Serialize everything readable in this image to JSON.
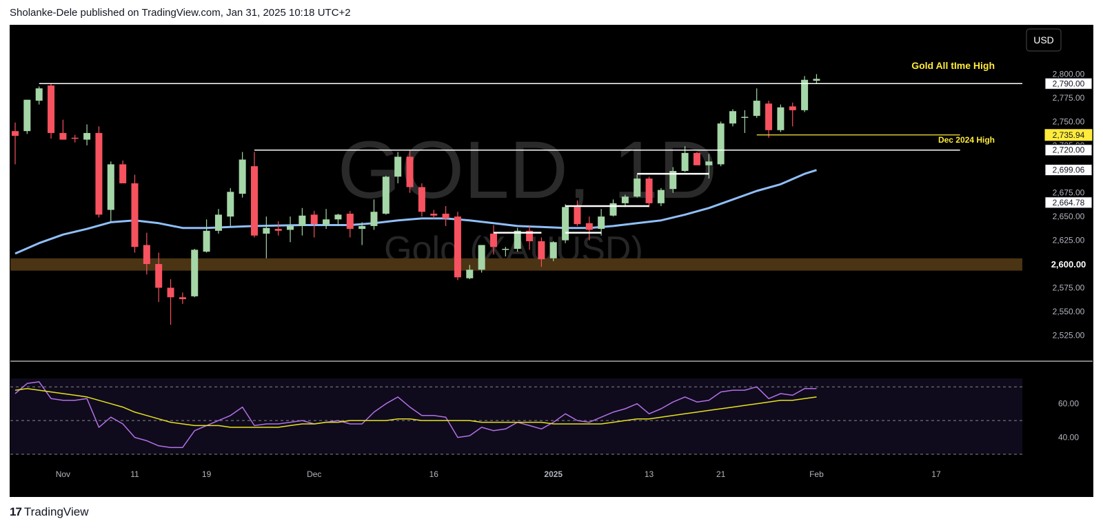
{
  "header": {
    "publish_line": "Sholanke-Dele published on TradingView.com, Jan 31, 2025 10:18 UTC+2"
  },
  "watermark": {
    "symbol": "GOLD, 1D",
    "description": "Gold (XAUUSD)"
  },
  "currency_button": "USD",
  "branding": {
    "logo_glyph": "17",
    "name": "TradingView"
  },
  "annotations": {
    "ath_label": "Gold All tIme High",
    "dec_high_label": "Dec 2024 High"
  },
  "colors": {
    "background": "#000000",
    "up_candle": "#a5d6a7",
    "down_candle": "#f7525f",
    "ma_line": "#90bff9",
    "rsi_line": "#b371e8",
    "rsi_ma": "#e8e21f",
    "support_zone": "#4a3414",
    "annotation_text": "#ffeb3b"
  },
  "chart_data": [
    {
      "type": "candlestick",
      "instrument": "Gold (XAUUSD)",
      "timeframe": "1D",
      "ylim": [
        2510,
        2812
      ],
      "y_ticks": [
        2525,
        2550,
        2575,
        2600,
        2625,
        2650,
        2675,
        2700,
        2725,
        2750,
        2775,
        2800
      ],
      "price_labels": [
        {
          "value": 2790.0,
          "text": "2,790.00",
          "style": "white"
        },
        {
          "value": 2735.94,
          "text": "2,735.94",
          "style": "yellow"
        },
        {
          "value": 2720.0,
          "text": "2,720.00",
          "style": "white"
        },
        {
          "value": 2699.06,
          "text": "2,699.06",
          "style": "white"
        },
        {
          "value": 2664.78,
          "text": "2,664.78",
          "style": "white"
        },
        {
          "value": 2600.0,
          "text": "2,600.00",
          "style": "bold"
        }
      ],
      "x_ticks": [
        {
          "label": "Nov",
          "index": 4
        },
        {
          "label": "11",
          "index": 10
        },
        {
          "label": "19",
          "index": 16
        },
        {
          "label": "Dec",
          "index": 25
        },
        {
          "label": "16",
          "index": 35
        },
        {
          "label": "2025",
          "index": 45,
          "bold": true
        },
        {
          "label": "13",
          "index": 53
        },
        {
          "label": "21",
          "index": 59
        },
        {
          "label": "Feb",
          "index": 67
        },
        {
          "label": "17",
          "index": 77
        }
      ],
      "candles": [
        [
          2740,
          2749,
          2705,
          2735
        ],
        [
          2740,
          2773,
          2737,
          2773
        ],
        [
          2772,
          2787,
          2768,
          2785
        ],
        [
          2788,
          2790,
          2732,
          2738
        ],
        [
          2738,
          2752,
          2731,
          2731
        ],
        [
          2733,
          2736,
          2728,
          2732
        ],
        [
          2731,
          2747,
          2725,
          2738
        ],
        [
          2738,
          2745,
          2649,
          2652
        ],
        [
          2657,
          2708,
          2645,
          2705
        ],
        [
          2705,
          2709,
          2686,
          2685
        ],
        [
          2685,
          2694,
          2612,
          2618
        ],
        [
          2620,
          2633,
          2589,
          2600
        ],
        [
          2600,
          2612,
          2560,
          2575
        ],
        [
          2575,
          2584,
          2536,
          2565
        ],
        [
          2565,
          2570,
          2558,
          2563
        ],
        [
          2566,
          2616,
          2565,
          2615
        ],
        [
          2613,
          2647,
          2612,
          2635
        ],
        [
          2635,
          2658,
          2632,
          2652
        ],
        [
          2650,
          2680,
          2640,
          2676
        ],
        [
          2674,
          2718,
          2670,
          2710
        ],
        [
          2703,
          2718,
          2628,
          2630
        ],
        [
          2632,
          2650,
          2606,
          2638
        ],
        [
          2637,
          2645,
          2630,
          2635
        ],
        [
          2636,
          2650,
          2623,
          2640
        ],
        [
          2640,
          2659,
          2630,
          2651
        ],
        [
          2652,
          2656,
          2628,
          2642
        ],
        [
          2641,
          2658,
          2637,
          2647
        ],
        [
          2647,
          2653,
          2640,
          2652
        ],
        [
          2653,
          2656,
          2628,
          2637
        ],
        [
          2637,
          2644,
          2620,
          2640
        ],
        [
          2640,
          2668,
          2636,
          2655
        ],
        [
          2653,
          2693,
          2652,
          2692
        ],
        [
          2692,
          2718,
          2685,
          2713
        ],
        [
          2713,
          2720,
          2675,
          2681
        ],
        [
          2681,
          2685,
          2650,
          2655
        ],
        [
          2653,
          2657,
          2648,
          2651
        ],
        [
          2653,
          2661,
          2640,
          2648
        ],
        [
          2650,
          2655,
          2583,
          2586
        ],
        [
          2585,
          2599,
          2584,
          2594
        ],
        [
          2594,
          2620,
          2591,
          2620
        ],
        [
          2632,
          2641,
          2610,
          2618
        ],
        [
          2615,
          2618,
          2608,
          2616
        ],
        [
          2616,
          2638,
          2613,
          2635
        ],
        [
          2635,
          2640,
          2615,
          2624
        ],
        [
          2624,
          2628,
          2597,
          2605
        ],
        [
          2606,
          2624,
          2603,
          2623
        ],
        [
          2625,
          2663,
          2622,
          2660
        ],
        [
          2660,
          2667,
          2640,
          2642
        ],
        [
          2643,
          2650,
          2625,
          2636
        ],
        [
          2637,
          2658,
          2630,
          2650
        ],
        [
          2651,
          2668,
          2650,
          2664
        ],
        [
          2664,
          2673,
          2660,
          2671
        ],
        [
          2671,
          2694,
          2670,
          2690
        ],
        [
          2690,
          2692,
          2660,
          2664
        ],
        [
          2664,
          2680,
          2661,
          2678
        ],
        [
          2679,
          2702,
          2675,
          2698
        ],
        [
          2698,
          2724,
          2697,
          2717
        ],
        [
          2717,
          2718,
          2705,
          2704
        ],
        [
          2704,
          2716,
          2690,
          2708
        ],
        [
          2705,
          2750,
          2703,
          2748
        ],
        [
          2748,
          2763,
          2745,
          2761
        ],
        [
          2755,
          2762,
          2738,
          2755
        ],
        [
          2756,
          2785,
          2754,
          2772
        ],
        [
          2769,
          2772,
          2733,
          2741
        ],
        [
          2741,
          2768,
          2739,
          2765
        ],
        [
          2766,
          2770,
          2745,
          2762
        ],
        [
          2762,
          2798,
          2760,
          2794
        ],
        [
          2793,
          2800,
          2790,
          2795
        ]
      ],
      "ma_line": [
        [
          0,
          2611
        ],
        [
          2,
          2622
        ],
        [
          4,
          2631
        ],
        [
          6,
          2637
        ],
        [
          8,
          2644
        ],
        [
          10,
          2646
        ],
        [
          12,
          2643
        ],
        [
          14,
          2638
        ],
        [
          16,
          2638
        ],
        [
          18,
          2639
        ],
        [
          20,
          2640
        ],
        [
          24,
          2641
        ],
        [
          28,
          2641
        ],
        [
          30,
          2643
        ],
        [
          32,
          2646
        ],
        [
          34,
          2648
        ],
        [
          36,
          2648
        ],
        [
          38,
          2646
        ],
        [
          40,
          2643
        ],
        [
          42,
          2640
        ],
        [
          44,
          2639
        ],
        [
          46,
          2638
        ],
        [
          48,
          2638
        ],
        [
          50,
          2640
        ],
        [
          52,
          2643
        ],
        [
          54,
          2646
        ],
        [
          56,
          2652
        ],
        [
          58,
          2659
        ],
        [
          60,
          2668
        ],
        [
          62,
          2677
        ],
        [
          64,
          2684
        ],
        [
          66,
          2695
        ],
        [
          67,
          2699
        ]
      ],
      "support_zone": [
        2593,
        2606
      ],
      "horizontal_levels": [
        {
          "value": 2790,
          "from_index": 2,
          "to": "end",
          "color": "#ffffff",
          "label": "ath_label"
        },
        {
          "value": 2735.94,
          "from_index": 62,
          "to_index": 79,
          "color": "#ffeb3b"
        },
        {
          "value": 2720,
          "from_index": 20,
          "to_index": 79,
          "color": "#ffffff",
          "label": "dec_high_label"
        }
      ],
      "short_levels": [
        {
          "value": 2633,
          "from_index": 40,
          "to_index": 44
        },
        {
          "value": 2633,
          "from_index": 46,
          "to_index": 49
        },
        {
          "value": 2661,
          "from_index": 46,
          "to_index": 53
        },
        {
          "value": 2695,
          "from_index": 52,
          "to_index": 58
        }
      ]
    },
    {
      "type": "line",
      "indicator": "RSI",
      "ylim": [
        30,
        75
      ],
      "y_ticks": [
        40,
        60
      ],
      "bands": [
        30,
        50,
        70
      ],
      "series": [
        {
          "role": "rsi",
          "values": [
            66,
            72,
            73,
            63,
            62,
            62,
            63,
            46,
            52,
            48,
            40,
            38,
            35,
            34,
            34,
            44,
            47,
            50,
            53,
            58,
            47,
            48,
            48,
            49,
            50,
            48,
            49,
            50,
            48,
            48,
            55,
            60,
            64,
            58,
            53,
            53,
            52,
            40,
            41,
            46,
            44,
            45,
            49,
            47,
            45,
            49,
            54,
            50,
            49,
            52,
            55,
            57,
            60,
            54,
            57,
            61,
            64,
            61,
            62,
            67,
            68,
            68,
            70,
            63,
            66,
            65,
            69,
            69
          ]
        },
        {
          "role": "rsi_ma",
          "values": [
            68,
            69,
            68,
            67,
            66,
            65,
            64,
            62,
            60,
            58,
            55,
            53,
            51,
            49,
            48,
            47,
            47,
            47,
            46,
            46,
            46,
            46,
            46,
            47,
            48,
            48,
            49,
            49,
            50,
            50,
            50,
            50,
            51,
            51,
            50,
            50,
            50,
            50,
            50,
            49,
            49,
            49,
            49,
            49,
            49,
            48,
            48,
            48,
            48,
            48,
            49,
            50,
            51,
            51,
            52,
            53,
            54,
            55,
            56,
            57,
            58,
            59,
            60,
            61,
            62,
            62,
            63,
            64
          ]
        }
      ]
    }
  ]
}
